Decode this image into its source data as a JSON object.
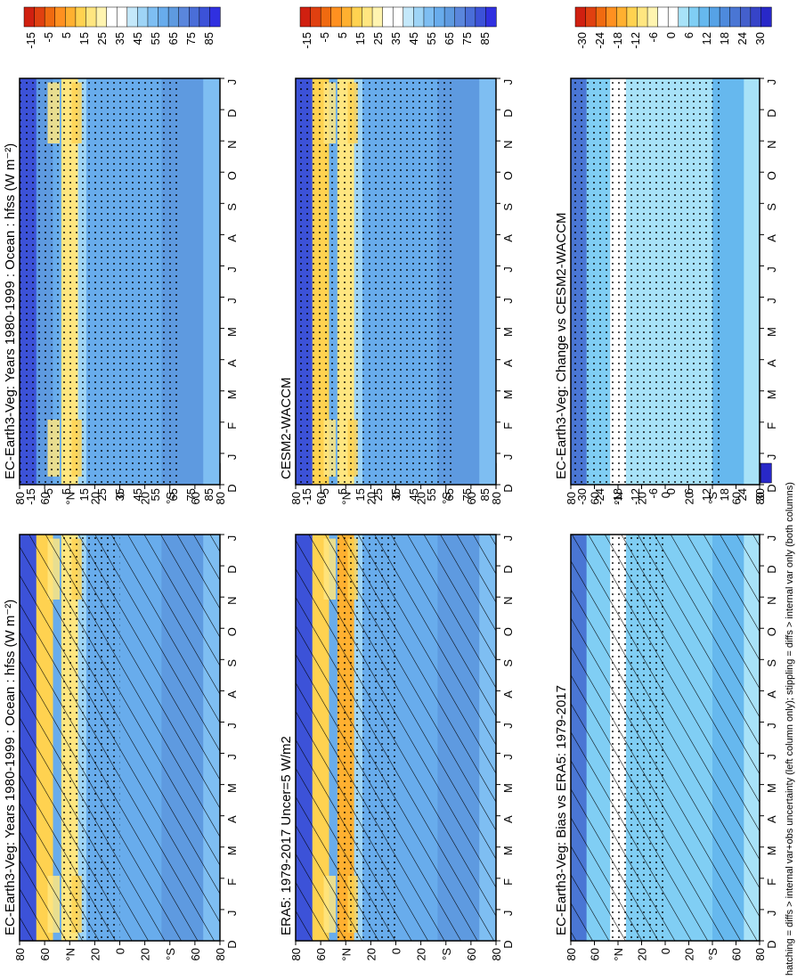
{
  "figure": {
    "footer": "hatching = diffs > internal var+obs uncertainty (left column only); stippling = diffs > internal var only (both columns)"
  },
  "palettes": {
    "abs": [
      "#3030e0",
      "#3c52d8",
      "#4a6ed8",
      "#5a86dc",
      "#5e9ae0",
      "#68acec",
      "#7ebef2",
      "#9ed4f6",
      "#c4e8fa",
      "#ffffff",
      "#ffffff",
      "#fff4b0",
      "#ffe680",
      "#ffd250",
      "#ffb030",
      "#ff9020",
      "#f06a10",
      "#e04010",
      "#d02010"
    ],
    "diff": [
      "#2828c8",
      "#3644c8",
      "#4460cc",
      "#4a76d4",
      "#4e8adc",
      "#56a2e6",
      "#66b8ee",
      "#80cef4",
      "#a8e2f8",
      "#ffffff",
      "#ffffff",
      "#fff4b0",
      "#ffe680",
      "#ffd250",
      "#ffb030",
      "#ff9020",
      "#f06a10",
      "#e04010",
      "#d02010"
    ]
  },
  "chart_data": [
    {
      "type": "heatmap",
      "title": "EC-Earth3-Veg: Years 1980-1999 : Ocean : hfss (W m⁻²)",
      "x": [
        "D",
        "J",
        "F",
        "M",
        "A",
        "M",
        "J",
        "J",
        "A",
        "S",
        "O",
        "N",
        "D",
        "J"
      ],
      "y": [
        "80",
        "60",
        "°N",
        "20",
        "0",
        "20",
        "°S",
        "60",
        "80"
      ],
      "colorbar_ticks": [
        "85",
        "75",
        "65",
        "55",
        "45",
        "35",
        "25",
        "15",
        "5",
        "-5",
        "-15"
      ],
      "palette": "abs",
      "hatching": true,
      "stippling": true
    },
    {
      "type": "heatmap",
      "title": "EC-Earth3-Veg: Years 1980-1999 : Ocean : hfss (W m⁻²)",
      "x": [
        "D",
        "J",
        "F",
        "M",
        "A",
        "M",
        "J",
        "J",
        "A",
        "S",
        "O",
        "N",
        "D",
        "J"
      ],
      "y": [
        "80",
        "60",
        "°N",
        "20",
        "0",
        "20",
        "°S",
        "60",
        "80"
      ],
      "colorbar_ticks": [
        "85",
        "75",
        "65",
        "55",
        "45",
        "35",
        "25",
        "15",
        "5",
        "-5",
        "-15"
      ],
      "palette": "abs",
      "hatching": false,
      "stippling": true
    },
    {
      "type": "heatmap",
      "title": "ERA5: 1979-2017 Uncer=5 W/m2",
      "x": [
        "D",
        "J",
        "F",
        "M",
        "A",
        "M",
        "J",
        "J",
        "A",
        "S",
        "O",
        "N",
        "D",
        "J"
      ],
      "y": [
        "80",
        "60",
        "°N",
        "20",
        "0",
        "20",
        "°S",
        "60",
        "80"
      ],
      "colorbar_ticks": [
        "85",
        "75",
        "65",
        "55",
        "45",
        "35",
        "25",
        "15",
        "5",
        "-5",
        "-15"
      ],
      "palette": "abs",
      "hatching": true,
      "stippling": true
    },
    {
      "type": "heatmap",
      "title": "CESM2-WACCM",
      "x": [
        "D",
        "J",
        "F",
        "M",
        "A",
        "M",
        "J",
        "J",
        "A",
        "S",
        "O",
        "N",
        "D",
        "J"
      ],
      "y": [
        "80",
        "60",
        "°N",
        "20",
        "0",
        "20",
        "°S",
        "60",
        "80"
      ],
      "colorbar_ticks": [
        "85",
        "75",
        "65",
        "55",
        "45",
        "35",
        "25",
        "15",
        "5",
        "-5",
        "-15"
      ],
      "palette": "abs",
      "hatching": false,
      "stippling": true
    },
    {
      "type": "heatmap",
      "title": "EC-Earth3-Veg: Bias vs ERA5: 1979-2017",
      "x": [
        "D",
        "J",
        "F",
        "M",
        "A",
        "M",
        "J",
        "J",
        "A",
        "S",
        "O",
        "N",
        "D",
        "J"
      ],
      "y": [
        "80",
        "60",
        "°N",
        "20",
        "0",
        "20",
        "°S",
        "60",
        "80"
      ],
      "colorbar_ticks": [
        "30",
        "24",
        "18",
        "12",
        "6",
        "0",
        "-6",
        "-12",
        "-18",
        "-24",
        "-30"
      ],
      "palette": "diff",
      "hatching": true,
      "stippling": true
    },
    {
      "type": "heatmap",
      "title": "EC-Earth3-Veg: Change vs CESM2-WACCM",
      "x": [
        "D",
        "J",
        "F",
        "M",
        "A",
        "M",
        "J",
        "J",
        "A",
        "S",
        "O",
        "N",
        "D",
        "J"
      ],
      "y": [
        "80",
        "60",
        "°N",
        "20",
        "0",
        "20",
        "°S",
        "60",
        "80"
      ],
      "colorbar_ticks": [
        "30",
        "24",
        "18",
        "12",
        "6",
        "0",
        "-6",
        "-12",
        "-18",
        "-24",
        "-30"
      ],
      "palette": "diff",
      "hatching": false,
      "stippling": true
    }
  ]
}
